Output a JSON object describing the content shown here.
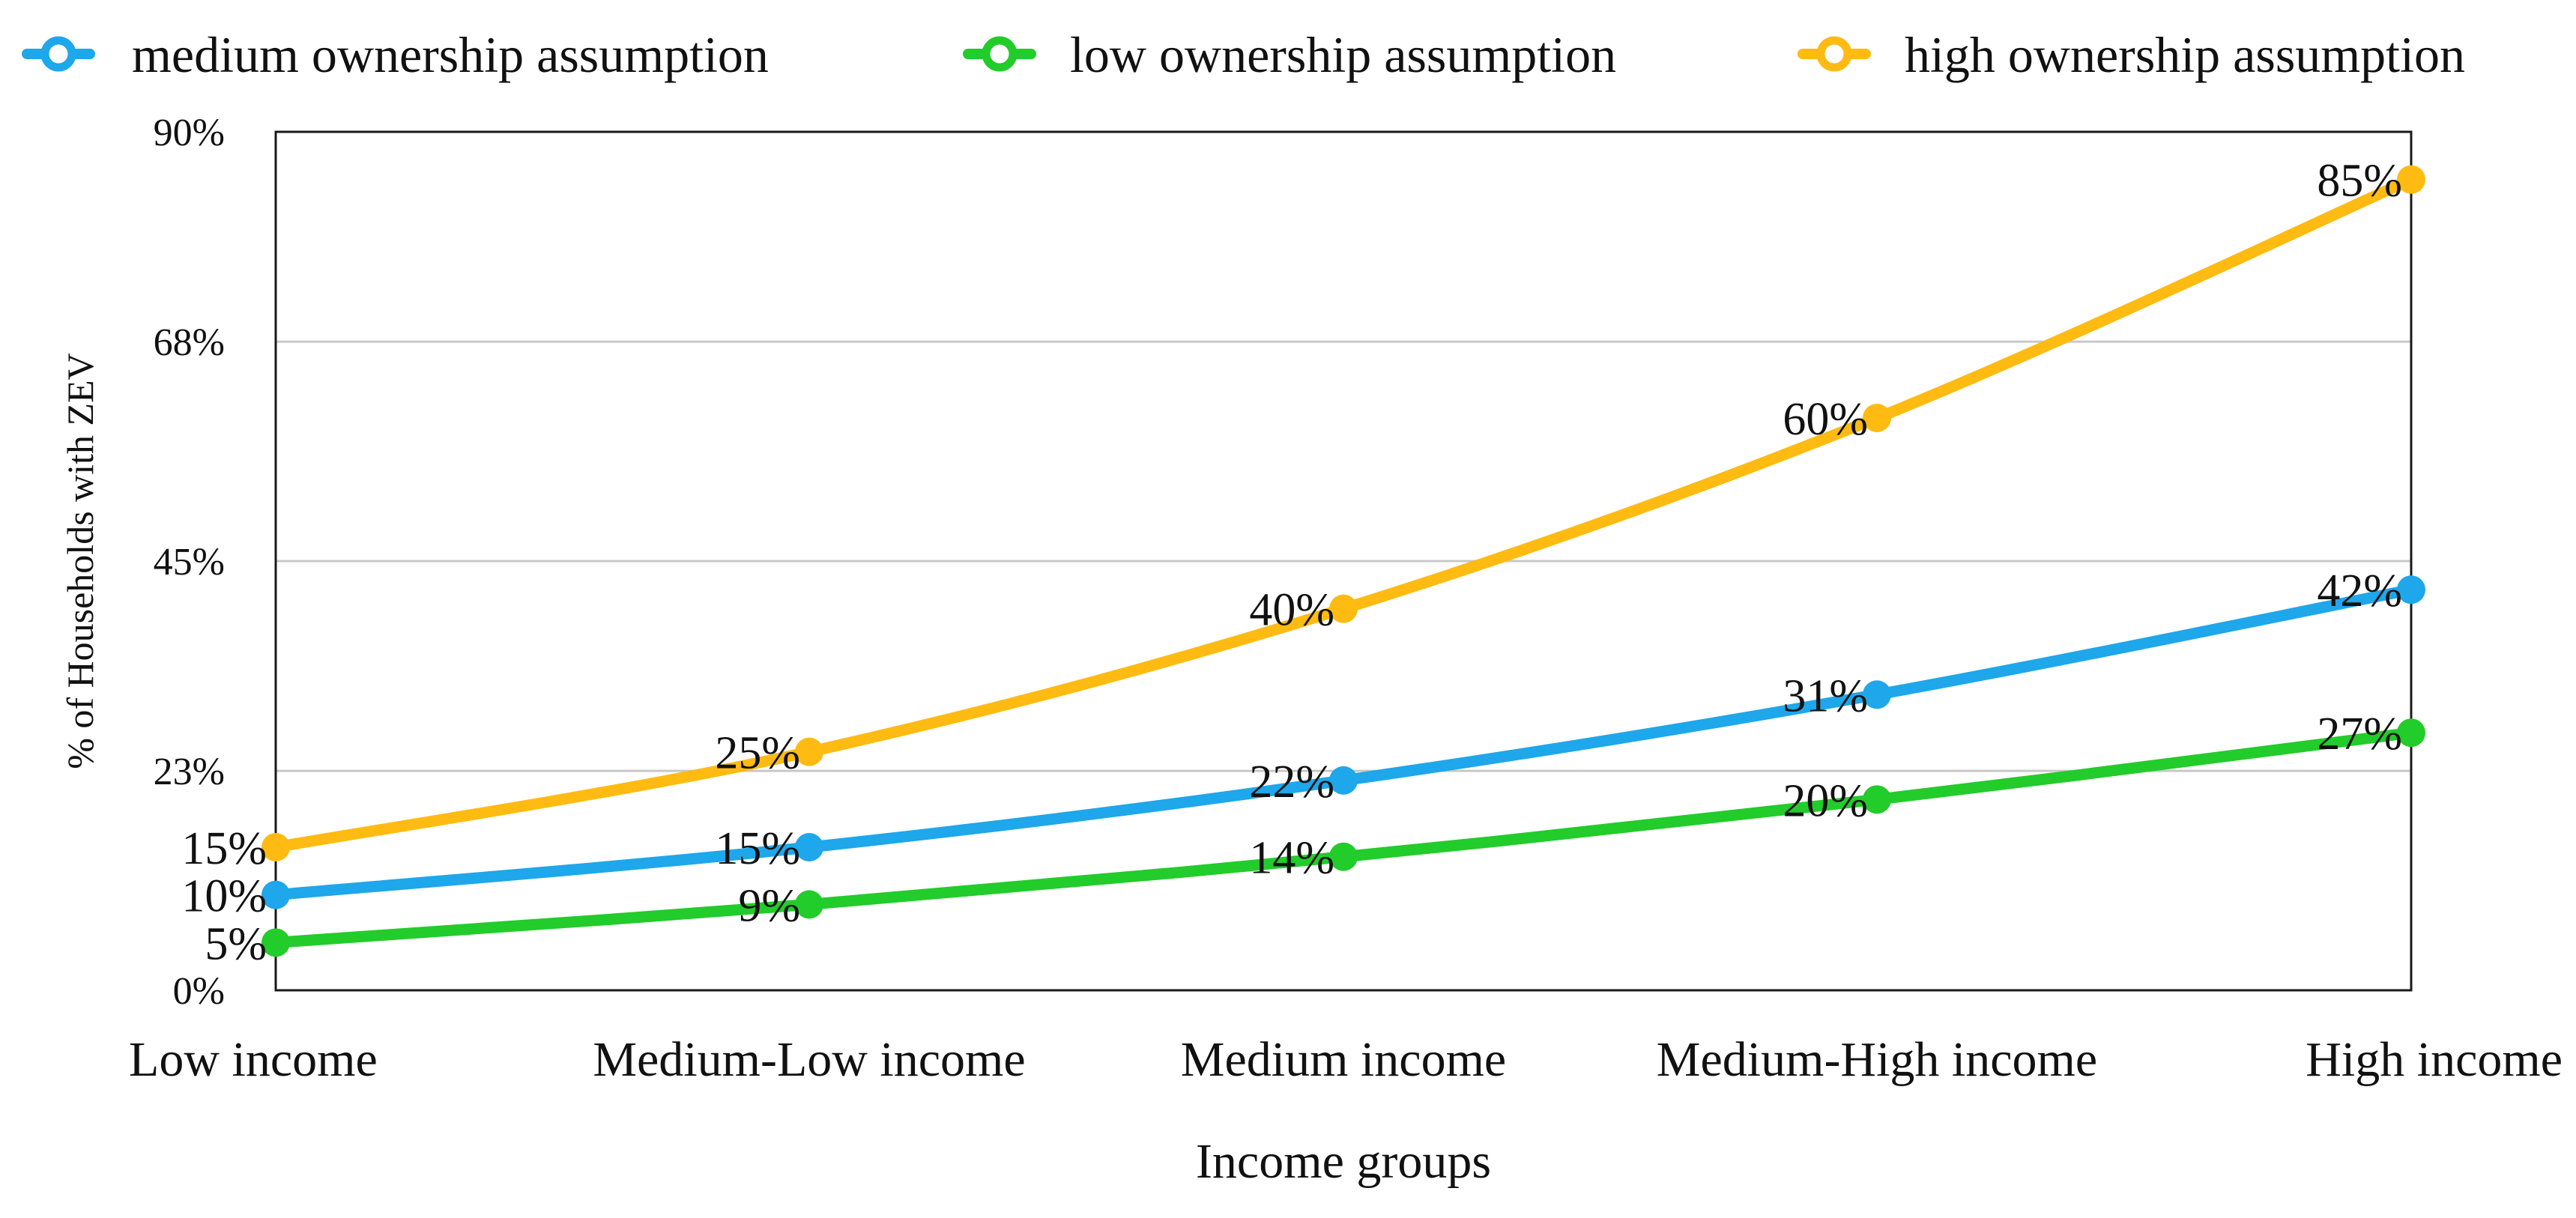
{
  "chart_data": {
    "type": "line",
    "title": "",
    "xlabel": "Income groups",
    "ylabel": "% of Households with ZEV",
    "categories": [
      "Low income",
      "Medium-Low income",
      "Medium income",
      "Medium-High income",
      "High income"
    ],
    "ylim": [
      0,
      90
    ],
    "y_ticks": [
      0,
      23,
      45,
      68,
      90
    ],
    "y_tick_labels": [
      "0%",
      "23%",
      "45%",
      "68%",
      "90%"
    ],
    "grid": true,
    "legend_position": "top",
    "series": [
      {
        "name": "medium ownership assumption",
        "color": "#1ea7ea",
        "values": [
          10,
          15,
          22,
          31,
          42
        ],
        "labels": [
          "10%",
          "15%",
          "22%",
          "31%",
          "42%"
        ]
      },
      {
        "name": "low ownership assumption",
        "color": "#22cc2a",
        "values": [
          5,
          9,
          14,
          20,
          27
        ],
        "labels": [
          "5%",
          "9%",
          "14%",
          "20%",
          "27%"
        ]
      },
      {
        "name": "high ownership assumption",
        "color": "#ffbb11",
        "values": [
          15,
          25,
          40,
          60,
          85
        ],
        "labels": [
          "15%",
          "25%",
          "40%",
          "60%",
          "85%"
        ]
      }
    ]
  }
}
